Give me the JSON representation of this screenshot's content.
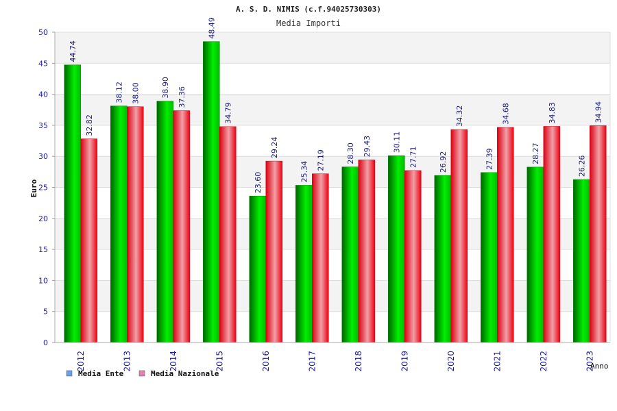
{
  "chart_data": {
    "type": "bar",
    "title": "A. S. D. NIMIS (c.f.94025730303)",
    "subtitle": "Media Importi",
    "xlabel": "Anno",
    "ylabel": "Euro",
    "ylim": [
      0,
      50
    ],
    "yticks": [
      "0",
      "5",
      "10",
      "15",
      "20",
      "25",
      "30",
      "35",
      "40",
      "45",
      "50"
    ],
    "grid": true,
    "legend_position": "bottom-left",
    "categories": [
      "2012",
      "2013",
      "2014",
      "2015",
      "2016",
      "2017",
      "2018",
      "2019",
      "2020",
      "2021",
      "2022",
      "2023"
    ],
    "series": [
      {
        "name": "Media Ente",
        "color": "#00cc00",
        "legend_color": "#6aa0e8",
        "values": [
          44.74,
          38.12,
          38.9,
          48.49,
          23.6,
          25.34,
          28.3,
          30.11,
          26.92,
          27.39,
          28.27,
          26.26
        ],
        "labels": [
          "44.74",
          "38.12",
          "38.90",
          "48.49",
          "23.60",
          "25.34",
          "28.30",
          "30.11",
          "26.92",
          "27.39",
          "28.27",
          "26.26"
        ]
      },
      {
        "name": "Media Nazionale",
        "color": "#ee1122",
        "legend_color": "#e080b0",
        "values": [
          32.82,
          38.0,
          37.36,
          34.79,
          29.24,
          27.19,
          29.43,
          27.71,
          34.32,
          34.68,
          34.83,
          34.94
        ],
        "labels": [
          "32.82",
          "38.00",
          "37.36",
          "34.79",
          "29.24",
          "27.19",
          "29.43",
          "27.71",
          "34.32",
          "34.68",
          "34.83",
          "34.94"
        ]
      }
    ]
  }
}
